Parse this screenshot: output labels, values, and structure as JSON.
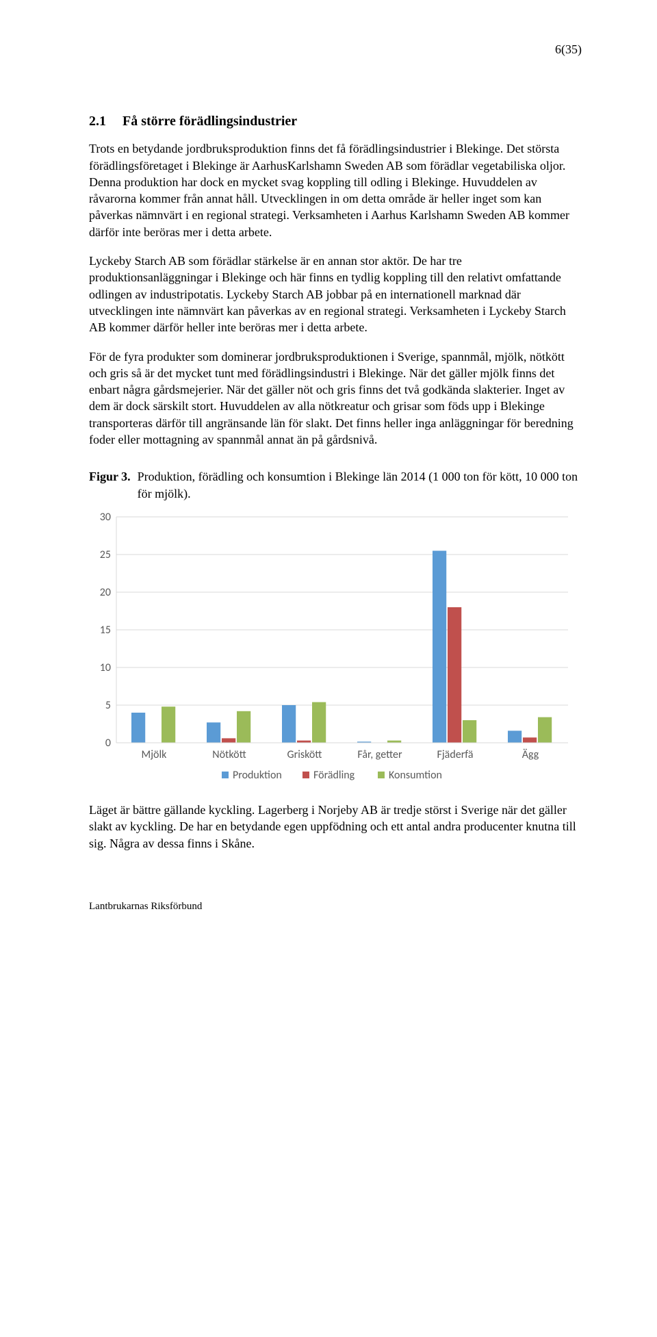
{
  "page_number": "6(35)",
  "heading": {
    "num": "2.1",
    "title": "Få större förädlingsindustrier"
  },
  "paragraphs": [
    "Trots en betydande jordbruksproduktion finns det få förädlingsindustrier i Blekinge. Det största förädlingsföretaget i Blekinge är AarhusKarlshamn Sweden AB som förädlar vegetabiliska oljor. Denna produktion har dock en mycket svag koppling till odling i Blekinge. Huvuddelen av råvarorna kommer från annat håll. Utvecklingen in om detta område är heller inget som kan påverkas nämnvärt i en regional strategi. Verksamheten i Aarhus Karlshamn Sweden AB kommer därför inte beröras mer i detta arbete.",
    "Lyckeby Starch AB som förädlar stärkelse är en annan stor aktör. De har tre produktionsanläggningar i Blekinge och här finns en tydlig koppling till den relativt omfattande odlingen av industripotatis. Lyckeby Starch AB jobbar på en internationell marknad där utvecklingen inte nämnvärt kan påverkas av en regional strategi. Verksamheten i Lyckeby Starch AB kommer därför heller inte beröras mer i detta arbete.",
    "För de fyra produkter som dominerar jordbruksproduktionen i Sverige, spannmål, mjölk, nötkött och gris så är det mycket tunt med förädlingsindustri i Blekinge. När det gäller mjölk finns det enbart några gårdsmejerier. När det gäller nöt och gris finns det två godkända slakterier. Inget av dem är dock särskilt stort. Huvuddelen av alla nötkreatur och grisar som föds upp i Blekinge transporteras därför till angränsande län för slakt. Det finns heller inga anläggningar för beredning foder eller mottagning av spannmål annat än på gårdsnivå."
  ],
  "figure": {
    "label": "Figur 3.",
    "caption": "Produktion, förädling och konsumtion i Blekinge län 2014 (1 000 ton för kött, 10 000 ton för mjölk)."
  },
  "chart": {
    "type": "bar",
    "categories": [
      "Mjölk",
      "Nötkött",
      "Griskött",
      "Får, getter",
      "Fjäderfä",
      "Ägg"
    ],
    "series": [
      {
        "name": "Produktion",
        "color": "#5b9bd5",
        "values": [
          4.0,
          2.7,
          5.0,
          0.15,
          25.5,
          1.6
        ]
      },
      {
        "name": "Förädling",
        "color": "#c0504d",
        "values": [
          0.0,
          0.6,
          0.3,
          0.0,
          18.0,
          0.7
        ]
      },
      {
        "name": "Konsumtion",
        "color": "#9bbb59",
        "values": [
          4.8,
          4.2,
          5.4,
          0.3,
          3.0,
          3.4
        ]
      }
    ],
    "ylim": [
      0,
      30
    ],
    "ytick_step": 5,
    "y_ticks": [
      0,
      5,
      10,
      15,
      20,
      25,
      30
    ],
    "grid_color": "#d9d9d9",
    "axis_text_color": "#595959",
    "bar_group_width": 0.6,
    "background_color": "#ffffff",
    "tick_fontsize": 16,
    "legend_fontsize": 16,
    "legend_box_size": 10
  },
  "closing_paragraph": "Läget är bättre gällande kyckling. Lagerberg i Norjeby AB är tredje störst i Sverige när det gäller slakt av kyckling. De har en betydande egen uppfödning och ett antal andra producenter knutna till sig. Några av dessa finns i Skåne.",
  "footer": "Lantbrukarnas Riksförbund"
}
